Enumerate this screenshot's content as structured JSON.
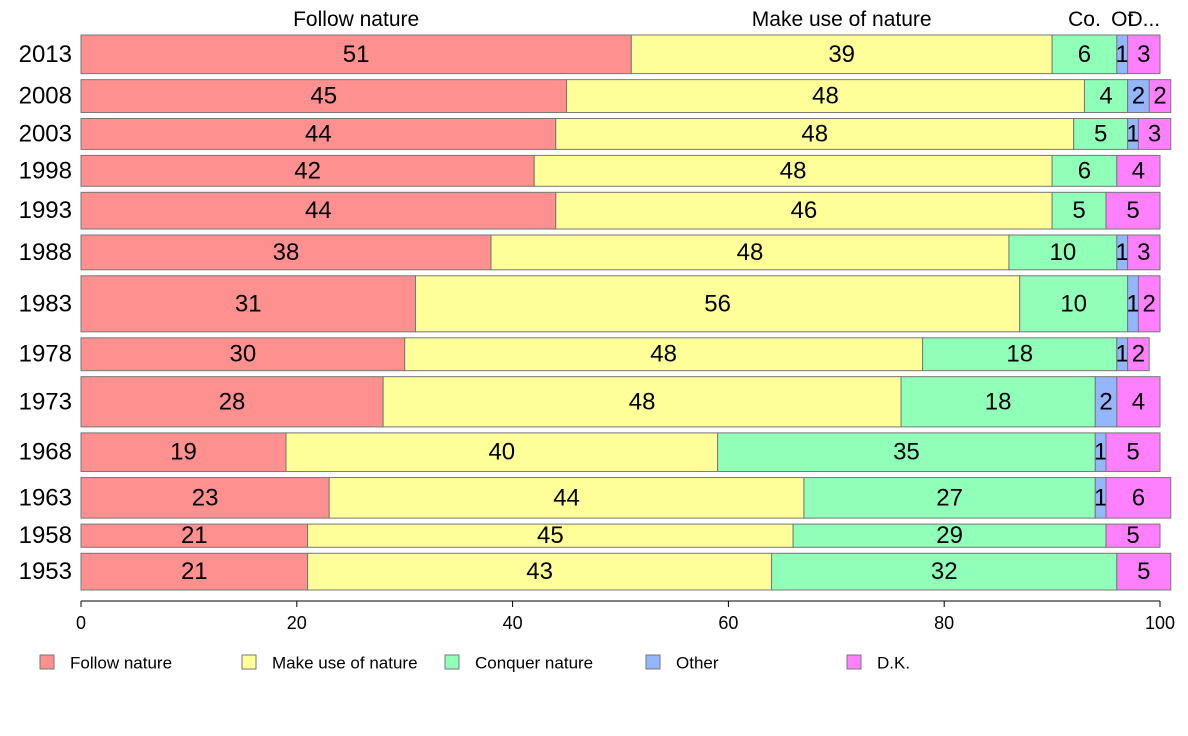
{
  "chart_data": {
    "type": "bar",
    "orientation": "horizontal",
    "stacked": true,
    "categories": [
      "2013",
      "2008",
      "2003",
      "1998",
      "1993",
      "1988",
      "1983",
      "1978",
      "1973",
      "1968",
      "1963",
      "1958",
      "1953"
    ],
    "bar_weights": [
      1.0,
      0.85,
      0.8,
      0.8,
      0.95,
      0.9,
      1.45,
      0.85,
      1.3,
      1.0,
      1.05,
      0.6,
      0.95
    ],
    "series": [
      {
        "name": "Follow nature",
        "color": "#ff9090",
        "values": [
          51,
          45,
          44,
          42,
          44,
          38,
          31,
          30,
          28,
          19,
          23,
          21,
          21
        ]
      },
      {
        "name": "Make use of nature",
        "color": "#ffff99",
        "values": [
          39,
          48,
          48,
          48,
          46,
          48,
          56,
          48,
          48,
          40,
          44,
          45,
          43
        ]
      },
      {
        "name": "Conquer nature",
        "color": "#90ffb8",
        "values": [
          6,
          4,
          5,
          6,
          5,
          10,
          10,
          18,
          18,
          35,
          27,
          29,
          32
        ]
      },
      {
        "name": "Other",
        "color": "#94b6ff",
        "values": [
          1,
          2,
          1,
          0,
          0,
          1,
          1,
          1,
          2,
          1,
          1,
          0,
          0
        ]
      },
      {
        "name": "D.K.",
        "color": "#ff80ff",
        "values": [
          3,
          2,
          3,
          4,
          5,
          3,
          2,
          2,
          4,
          5,
          6,
          5,
          5
        ]
      }
    ],
    "top_labels": [
      "Follow nature",
      "Make use of nature",
      "Co.",
      "Ot",
      "D..."
    ],
    "xlim": [
      0,
      100
    ],
    "xticks": [
      "0",
      "20",
      "40",
      "60",
      "80",
      "100"
    ],
    "grid": false,
    "legend_position": "bottom"
  }
}
